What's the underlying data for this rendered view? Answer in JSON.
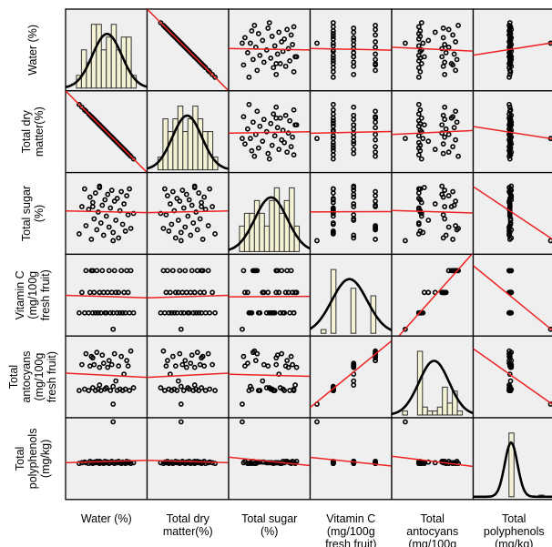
{
  "chart_data": {
    "type": "scatter-matrix",
    "title": "",
    "variables": [
      {
        "key": "water",
        "label_lines": [
          "Water (%)"
        ],
        "range": [
          -3,
          3
        ]
      },
      {
        "key": "dry",
        "label_lines": [
          "Total dry",
          "matter(%)"
        ],
        "range": [
          -3,
          3
        ]
      },
      {
        "key": "sugar",
        "label_lines": [
          "Total sugar",
          "(%)"
        ],
        "range": [
          -3,
          3
        ]
      },
      {
        "key": "vitc",
        "label_lines": [
          "Vitamin C",
          "(mg/100g",
          "fresh fruit)"
        ],
        "range": [
          -3,
          3
        ]
      },
      {
        "key": "anto",
        "label_lines": [
          "Total",
          "antocyans",
          "(mg/100g",
          "fresh fruit)"
        ],
        "range": [
          -3,
          3
        ]
      },
      {
        "key": "poly",
        "label_lines": [
          "Total",
          "polyphenols",
          "(mg/kg)"
        ],
        "range": [
          -3,
          3
        ]
      }
    ],
    "observations": {
      "water": [
        -2.0,
        -1.8,
        -1.6,
        -1.5,
        -1.3,
        -1.2,
        -1.1,
        -1.0,
        -0.9,
        -0.8,
        -0.7,
        -0.6,
        -0.5,
        -0.4,
        -0.3,
        -0.2,
        -0.1,
        0.0,
        0.1,
        0.2,
        0.3,
        0.4,
        0.5,
        0.6,
        0.7,
        0.8,
        0.9,
        1.0,
        1.1,
        1.2,
        1.3,
        1.4,
        1.5,
        1.6,
        1.7,
        1.8,
        2.0,
        -0.5,
        0.5,
        -1.0
      ],
      "dry": [
        2.0,
        1.8,
        1.6,
        1.5,
        1.3,
        1.2,
        1.1,
        1.0,
        0.9,
        0.8,
        0.7,
        0.6,
        0.5,
        0.4,
        0.3,
        0.2,
        0.1,
        0.0,
        -0.1,
        -0.2,
        -0.3,
        -0.4,
        -0.5,
        -0.6,
        -0.7,
        -0.8,
        -0.9,
        -1.0,
        -1.1,
        -1.2,
        -1.3,
        -1.4,
        -1.5,
        -1.6,
        -1.7,
        -1.8,
        -2.0,
        0.5,
        -0.5,
        1.0
      ],
      "sugar": [
        -1.5,
        0.5,
        1.8,
        -0.9,
        0.3,
        1.2,
        -1.9,
        0.8,
        -0.4,
        1.5,
        -1.2,
        0.1,
        1.9,
        -0.7,
        0.6,
        -1.6,
        1.0,
        -0.2,
        1.4,
        -1.0,
        0.4,
        1.7,
        -1.4,
        0.9,
        -0.5,
        1.1,
        -1.8,
        0.2,
        1.6,
        -0.8,
        0.7,
        -1.3,
        1.3,
        -0.1,
        1.8,
        -1.1,
        0.0,
        2.0,
        -2.0,
        0.5
      ],
      "vitc": [
        -1.3,
        0.2,
        -1.3,
        1.8,
        -1.3,
        0.2,
        1.8,
        -1.3,
        0.2,
        -1.3,
        1.8,
        -1.3,
        0.2,
        -1.3,
        1.8,
        0.2,
        -1.3,
        -1.3,
        0.2,
        1.8,
        -1.3,
        0.2,
        -1.3,
        1.8,
        0.2,
        -1.3,
        0.2,
        -1.3,
        1.8,
        -1.3,
        0.2,
        -1.3,
        1.8,
        0.2,
        -1.3,
        1.8,
        -1.3,
        0.2,
        -2.5,
        1.8
      ],
      "anto": [
        -1.0,
        0.9,
        -0.9,
        1.7,
        -1.0,
        0.8,
        1.5,
        -0.8,
        0.9,
        -1.0,
        1.8,
        -0.9,
        -0.6,
        -1.0,
        1.6,
        1.0,
        -0.9,
        -0.8,
        0.7,
        1.2,
        -1.0,
        0.9,
        -0.7,
        1.7,
        -0.3,
        -1.0,
        0.8,
        -0.9,
        1.5,
        -1.0,
        0.2,
        -0.9,
        1.2,
        0.8,
        -1.0,
        1.9,
        -0.8,
        0.7,
        -2.0,
        1.4
      ],
      "poly": [
        -0.35,
        -0.3,
        -0.25,
        -0.3,
        -0.35,
        -0.2,
        -0.3,
        -0.35,
        -0.25,
        -0.3,
        -0.2,
        -0.3,
        -0.35,
        -0.25,
        -0.3,
        -0.35,
        -0.2,
        -0.3,
        -0.25,
        -0.35,
        -0.3,
        -0.2,
        -0.3,
        -0.35,
        -0.25,
        -0.3,
        -0.2,
        -0.3,
        -0.35,
        -0.25,
        -0.3,
        -0.35,
        -0.2,
        -0.3,
        -0.25,
        -0.35,
        -0.3,
        -0.2,
        2.7,
        -0.3
      ]
    },
    "grid": false,
    "background": "#efefef",
    "colors": {
      "panel_background": "#efefef",
      "histogram_fill": "#f4f2d4",
      "histogram_stroke": "#333333",
      "density_curve": "#000000",
      "regression_line": "#ee2222",
      "points": "#000000"
    }
  }
}
